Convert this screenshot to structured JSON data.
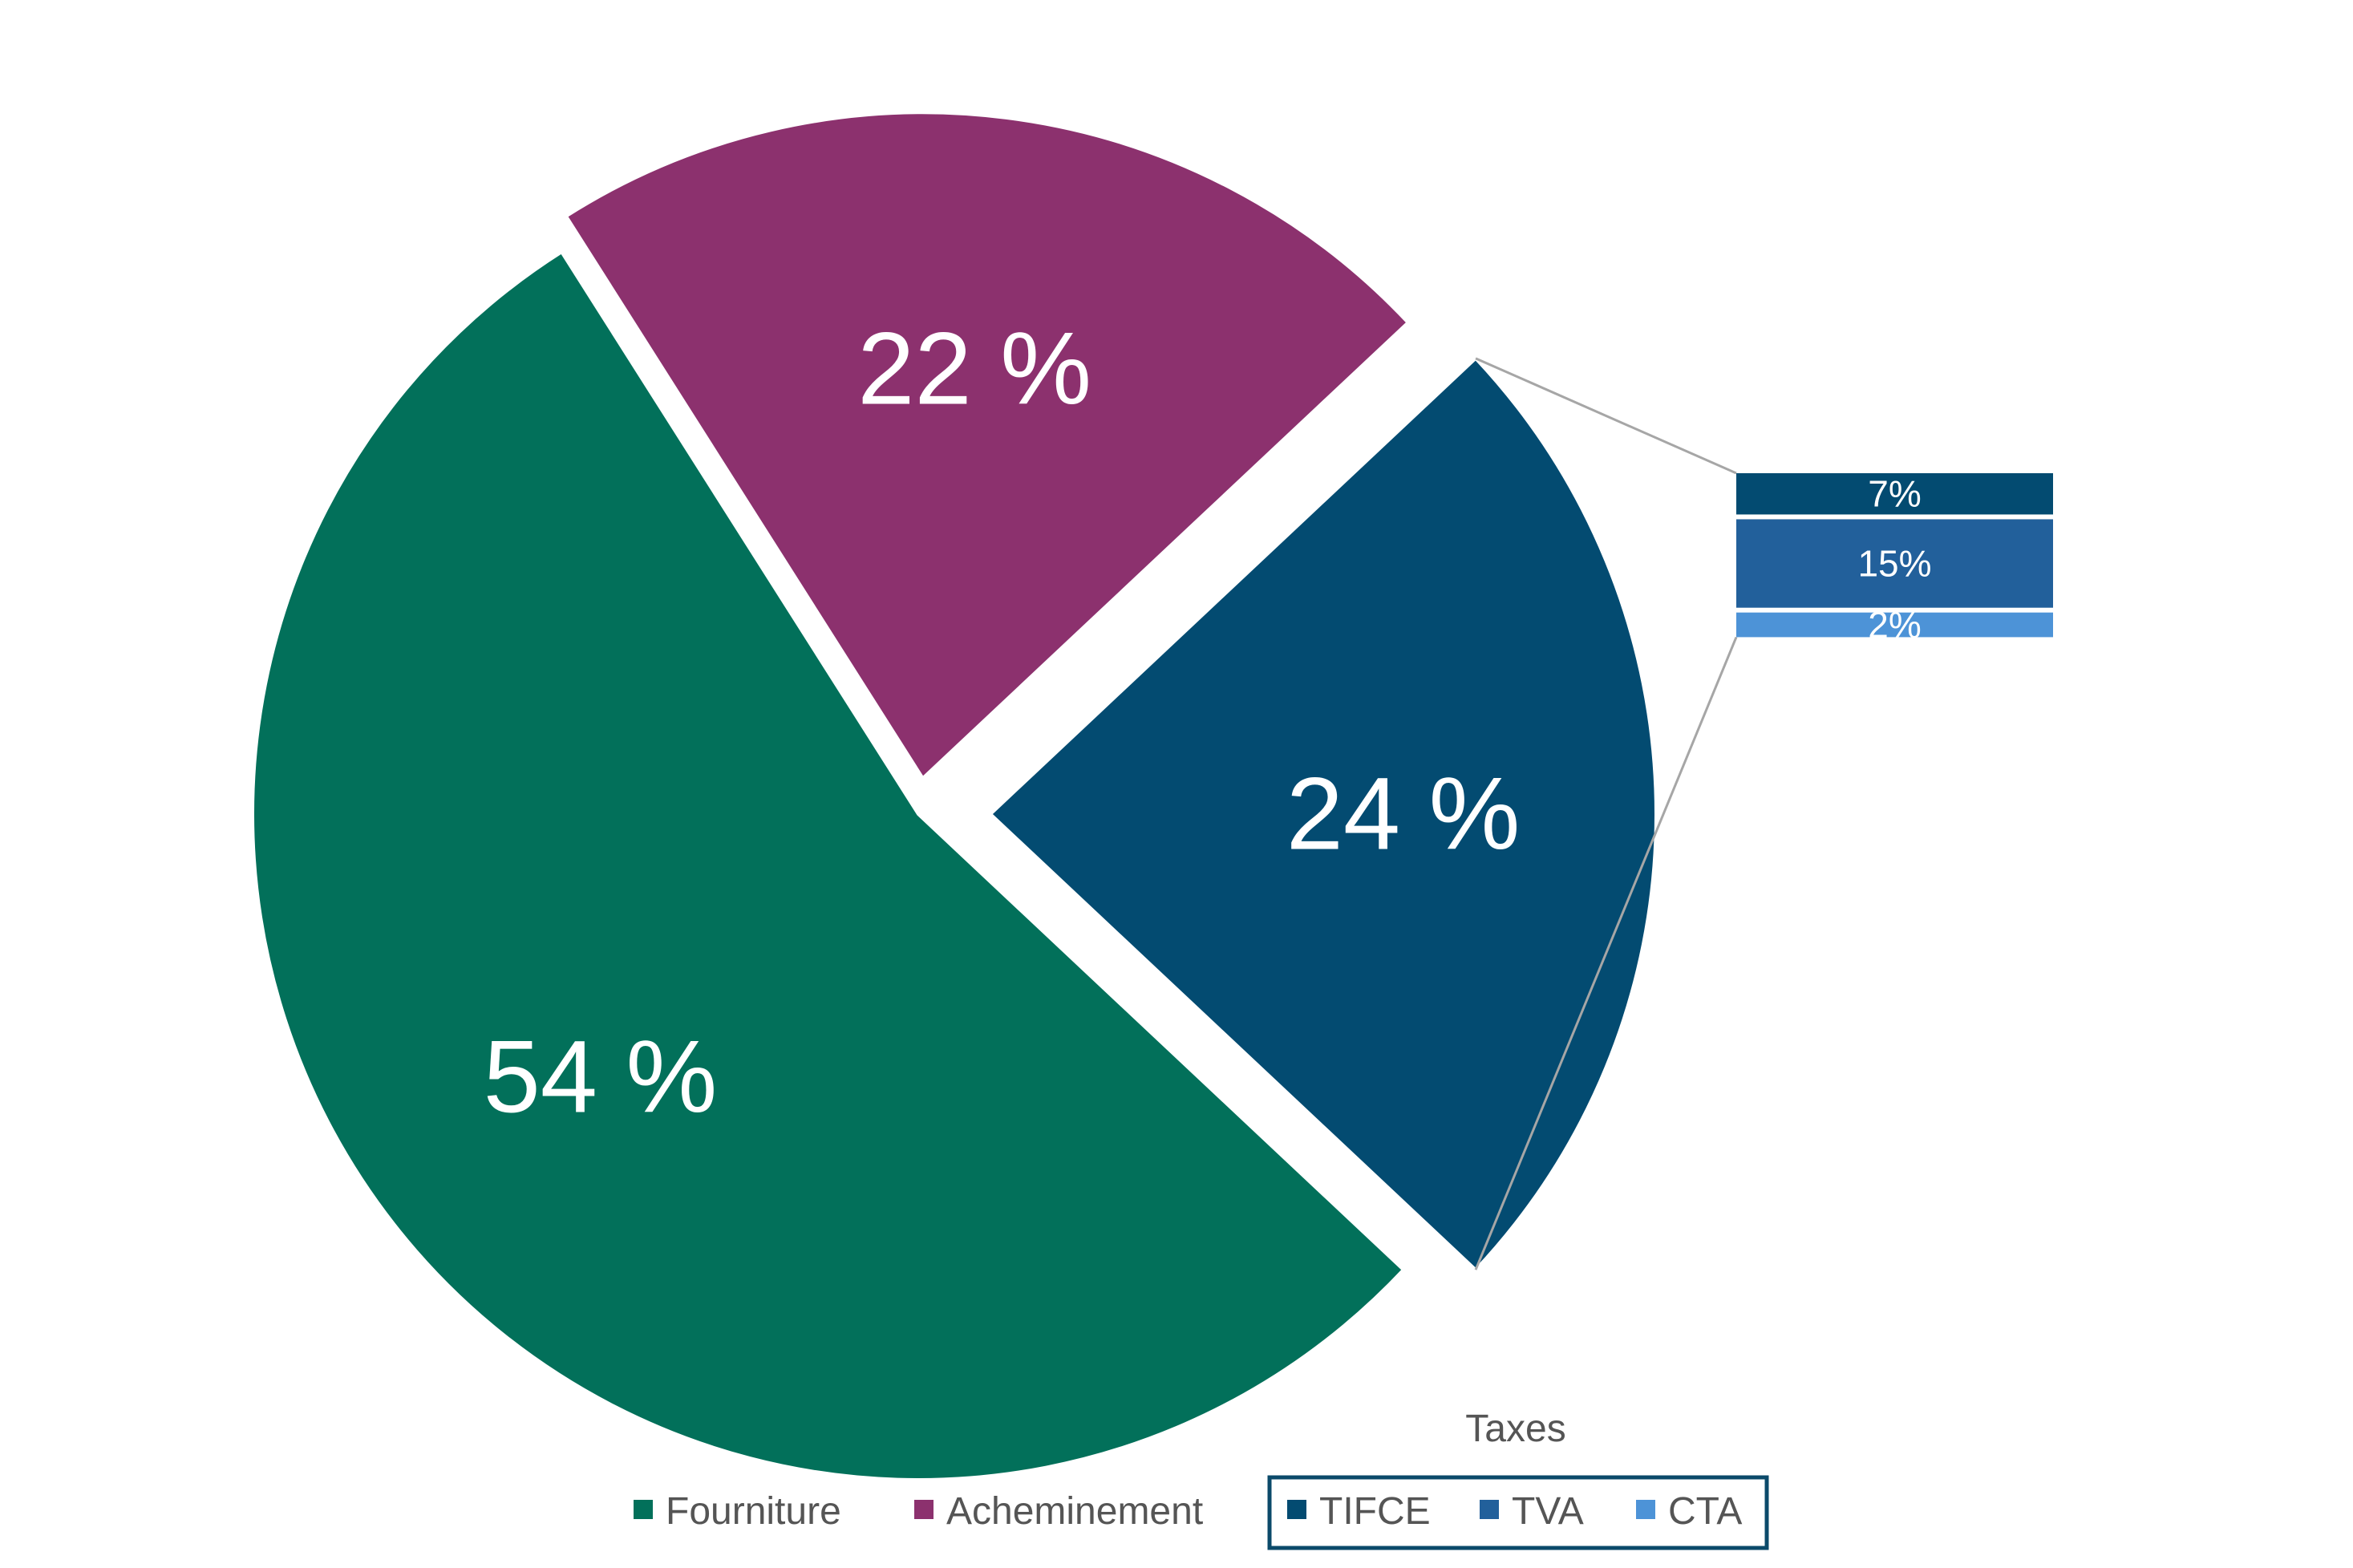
{
  "chart_data": {
    "type": "pie",
    "subtype": "bar-of-pie",
    "slices": [
      {
        "name": "Fourniture",
        "value": 54,
        "label": "54 %",
        "color": "#02705A"
      },
      {
        "name": "Acheminement",
        "value": 22,
        "label": "22 %",
        "color": "#8C316E"
      },
      {
        "name": "Taxes",
        "value": 24,
        "label": "24 %",
        "color": "#034B71"
      }
    ],
    "breakdown": {
      "of": "Taxes",
      "items": [
        {
          "name": "TIFCE",
          "value": 7,
          "label": "7%",
          "color": "#034B71"
        },
        {
          "name": "TVA",
          "value": 15,
          "label": "15%",
          "color": "#22609B"
        },
        {
          "name": "CTA",
          "value": 2,
          "label": "2%",
          "color": "#4D93D7"
        }
      ]
    },
    "legend": {
      "position": "bottom",
      "group_title": "Taxes",
      "items": [
        "Fourniture",
        "Acheminement",
        "TIFCE",
        "TVA",
        "CTA"
      ]
    }
  }
}
